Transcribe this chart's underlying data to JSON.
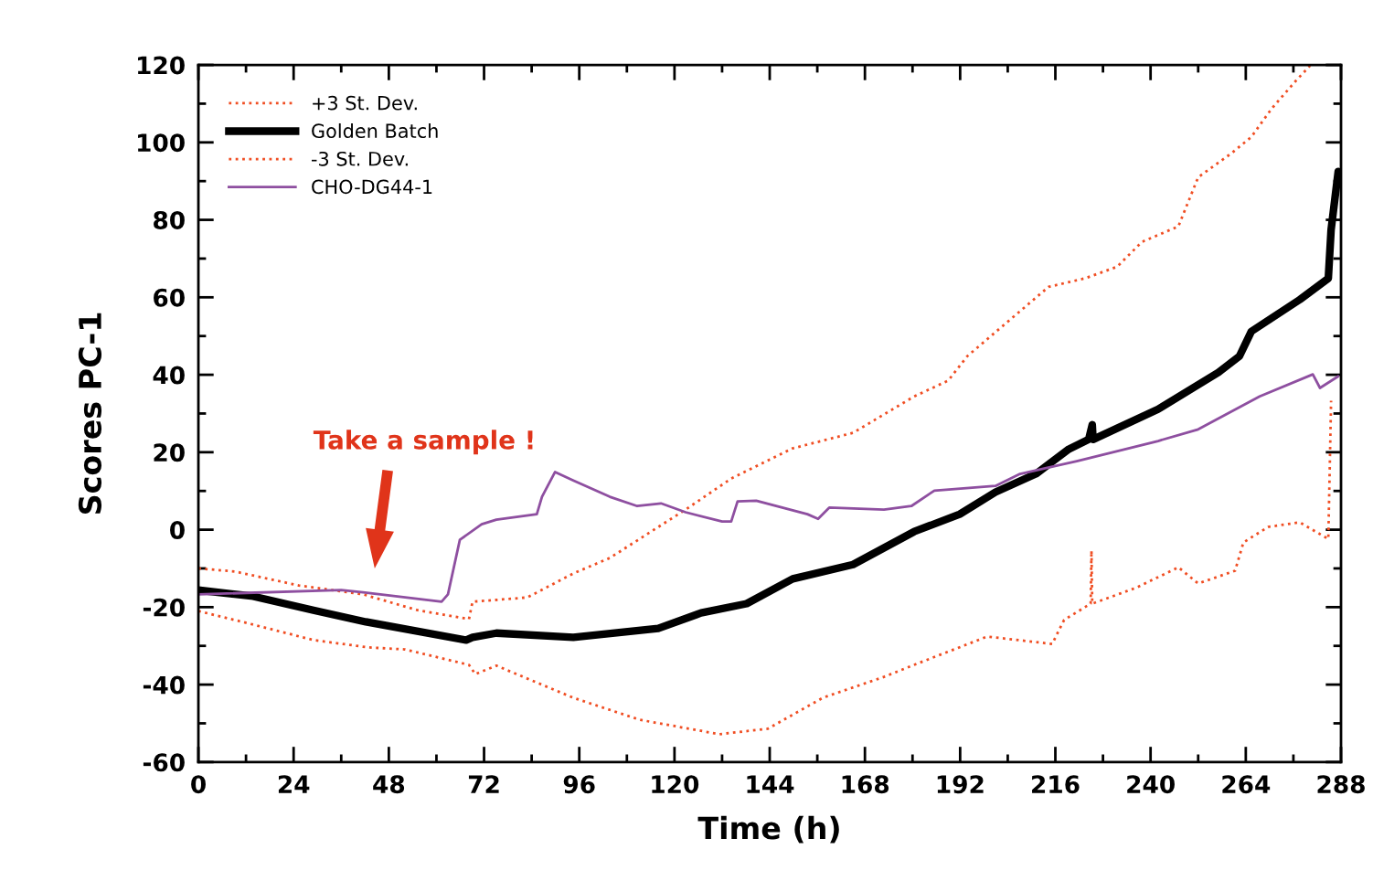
{
  "chart_data": {
    "type": "line",
    "xlabel": "Time (h)",
    "ylabel": "Scores PC-1",
    "xlim": [
      0,
      288
    ],
    "xticks": [
      0,
      24,
      48,
      72,
      96,
      120,
      144,
      168,
      192,
      216,
      240,
      264,
      288
    ],
    "ylim": [
      -60,
      120
    ],
    "yticks": [
      -60,
      -40,
      -20,
      0,
      20,
      40,
      60,
      80,
      100,
      120
    ],
    "grid": false,
    "legend": "top left",
    "marker": "none",
    "annotations": [
      "Take a sample !"
    ],
    "series": [
      {
        "name": "+3 St. Dev.",
        "color": "#f04e23",
        "line_style": "dotted",
        "x": [
          0,
          9.2,
          25.3,
          41.5,
          55.3,
          68.2,
          69.1,
          82.9,
          94.5,
          103.7,
          122.8,
          134.3,
          149.8,
          165,
          180.4,
          189,
          193.8,
          214.3,
          223.5,
          231.6,
          237.8,
          247,
          252,
          260.4,
          265.4,
          270.5,
          276.7,
          280.2
        ],
        "values": [
          -10,
          -10.8,
          -14.4,
          -16.7,
          -20.8,
          -23.1,
          -18.6,
          -17.5,
          -11.3,
          -7.3,
          5.2,
          13.2,
          21,
          25,
          34.4,
          38.5,
          44.8,
          62.7,
          64.9,
          67.9,
          74.3,
          78.3,
          91,
          97.2,
          101.4,
          108.7,
          116,
          119.8
        ]
      },
      {
        "name": "Golden Batch",
        "color": "#000000",
        "line_style": "solid",
        "x": [
          0,
          13.8,
          29,
          42.2,
          67.5,
          69.1,
          75.1,
          94.5,
          115.9,
          126.7,
          138.2,
          149.8,
          165,
          180.4,
          191.9,
          200.9,
          211.1,
          219.4,
          224.4,
          225.3,
          225.5,
          241.9,
          257.1,
          262.4,
          265.4,
          277.6,
          284.8,
          285.5,
          287.3
        ],
        "values": [
          -15.6,
          -17.2,
          -20.8,
          -23.8,
          -28.5,
          -27.8,
          -26.7,
          -27.8,
          -25.5,
          -21.5,
          -19.1,
          -12.7,
          -9,
          -0.5,
          4,
          9.7,
          14.4,
          20.8,
          23.3,
          27.1,
          23.3,
          31.1,
          40.6,
          44.8,
          51.2,
          59.4,
          64.9,
          77.4,
          92.5
        ]
      },
      {
        "name": "-3 St. Dev.",
        "color": "#f04e23",
        "line_style": "dotted",
        "x": [
          0,
          13.8,
          29,
          42.9,
          52,
          68.2,
          69.8,
          75.1,
          94.5,
          111.3,
          131.3,
          143.5,
          157.4,
          172.8,
          180.4,
          198.8,
          215.2,
          218.2,
          224.9,
          225.1,
          225.3,
          236.6,
          247,
          252,
          261.3,
          263.4,
          269.6,
          277.6,
          284.8,
          285.5
        ],
        "values": [
          -21,
          -24.5,
          -28.5,
          -30.4,
          -30.9,
          -34.9,
          -37.3,
          -35.1,
          -43.4,
          -49.1,
          -52.8,
          -51.4,
          -43.4,
          -38,
          -34.9,
          -27.6,
          -29.5,
          -23.3,
          -19.1,
          -5.4,
          -19.1,
          -14.9,
          -9.7,
          -13.9,
          -10.6,
          -3.3,
          0.7,
          1.9,
          -2.4,
          33.3
        ]
      },
      {
        "name": "CHO-DG44-1",
        "color": "#8e4fa0",
        "line_style": "solid",
        "x": [
          0,
          36,
          41.5,
          61.3,
          62.9,
          65.9,
          71.4,
          75.1,
          85.3,
          86.6,
          89.9,
          94.5,
          103.7,
          110.6,
          116.6,
          122.8,
          132,
          134.3,
          135.9,
          140.6,
          153.5,
          156.2,
          159,
          172.8,
          179.7,
          185.5,
          200.9,
          207.1,
          221.4,
          241.9,
          252,
          267.5,
          280.9,
          282.7,
          287.3
        ],
        "values": [
          -16.7,
          -15.6,
          -16.2,
          -18.6,
          -16.7,
          -2.6,
          1.4,
          2.6,
          4,
          8.5,
          14.9,
          12.7,
          8.5,
          6.1,
          6.8,
          4.5,
          2.1,
          2.1,
          7.3,
          7.5,
          4,
          2.8,
          5.7,
          5.2,
          6.1,
          10.1,
          11.3,
          14.4,
          17.7,
          22.9,
          25.9,
          34.4,
          40.1,
          36.6,
          39.6
        ]
      }
    ]
  }
}
